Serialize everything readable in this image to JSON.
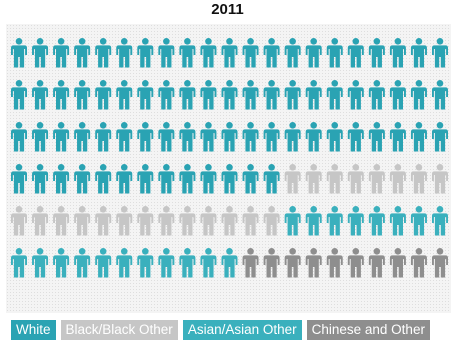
{
  "chart_data": {
    "type": "pictogram",
    "title": "2011",
    "total_icons": 126,
    "icons_per_row": 21,
    "series": [
      {
        "name": "White",
        "count": 76,
        "color": "#2aa3b3"
      },
      {
        "name": "Black/Black Other",
        "count": 21,
        "color": "#c6c6c6"
      },
      {
        "name": "Asian/Asian Other",
        "count": 19,
        "color": "#3ab0bd"
      },
      {
        "name": "Chinese and Other",
        "count": 10,
        "color": "#8e8e8e"
      }
    ],
    "legend_position": "bottom-left"
  }
}
